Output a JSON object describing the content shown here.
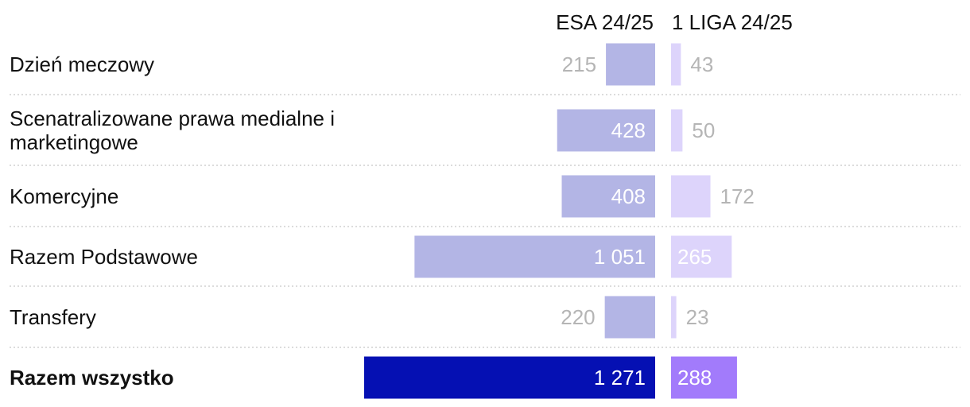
{
  "chart_data": {
    "type": "bar",
    "orientation": "horizontal",
    "series": [
      {
        "name": "ESA 24/25",
        "values": [
          215,
          428,
          408,
          1051,
          220,
          1271
        ],
        "labels": [
          "215",
          "428",
          "408",
          "1 051",
          "220",
          "1 271"
        ]
      },
      {
        "name": "1 LIGA 24/25",
        "values": [
          43,
          50,
          172,
          265,
          23,
          288
        ],
        "labels": [
          "43",
          "50",
          "172",
          "265",
          "23",
          "288"
        ]
      }
    ],
    "categories": [
      [
        "Dzień meczowy"
      ],
      [
        "Scenatralizowane prawa medialne i",
        "marketingowe"
      ],
      [
        "Komercyjne"
      ],
      [
        "Razem Podstawowe"
      ],
      [
        "Transfery"
      ],
      [
        "Razem wszystko"
      ]
    ],
    "bold_categories": [
      false,
      false,
      false,
      false,
      false,
      true
    ],
    "xlim": [
      0,
      1271
    ],
    "grid": false,
    "legend": "top-right",
    "colors": {
      "esa": "#b3b5e5",
      "esa_total": "#0510b3",
      "liga": "#ddd4fb",
      "liga_total": "#a27bfb",
      "value_light": "#ffffff",
      "value_gray": "#b5b5b5",
      "text": "#111111",
      "separator": "#c8c8c8"
    }
  }
}
